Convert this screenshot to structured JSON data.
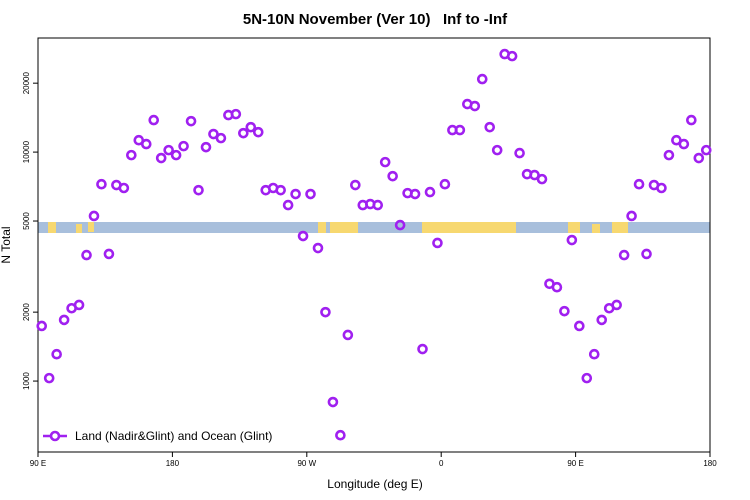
{
  "chart_data": {
    "type": "scatter",
    "title": "5N-10N November (Ver 10)   Inf to -Inf",
    "x_label": "Longitude (deg E)",
    "y_label": "N Total",
    "log_y": true,
    "xlim": [
      90,
      540
    ],
    "ylim": [
      490,
      31500
    ],
    "xticks": [
      {
        "value": 90,
        "label": "90 E"
      },
      {
        "value": 180,
        "label": "180"
      },
      {
        "value": 270,
        "label": "90 W"
      },
      {
        "value": 360,
        "label": "0"
      },
      {
        "value": 450,
        "label": "90 E"
      },
      {
        "value": 540,
        "label": "180"
      }
    ],
    "yticks": [
      1000,
      2000,
      5000,
      10000,
      20000
    ],
    "legend": "bottom-left",
    "x": [
      92.5,
      97.5,
      102.5,
      107.5,
      112.5,
      117.5,
      122.5,
      127.5,
      132.5,
      137.5,
      142.5,
      147.5,
      152.5,
      157.5,
      162.5,
      167.5,
      172.5,
      177.5,
      182.5,
      187.5,
      192.5,
      197.5,
      202.5,
      207.5,
      212.5,
      217.5,
      222.5,
      227.5,
      232.5,
      237.5,
      242.5,
      247.5,
      252.5,
      257.5,
      262.5,
      267.5,
      272.5,
      277.5,
      282.5,
      287.5,
      292.5,
      297.5,
      302.5,
      307.5,
      312.5,
      317.5,
      322.5,
      327.5,
      332.5,
      337.5,
      342.5,
      347.5,
      352.5,
      357.5,
      362.5,
      367.5,
      372.5,
      377.5,
      382.5,
      387.5,
      392.5,
      397.5,
      402.5,
      407.5,
      412.5,
      417.5,
      422.5,
      427.5,
      432.5,
      437.5,
      442.5,
      447.5,
      452.5,
      457.5,
      462.5,
      467.5,
      472.5,
      477.5,
      482.5,
      487.5,
      492.5,
      497.5,
      502.5,
      507.5,
      512.5,
      517.5,
      522.5,
      527.5,
      532.5,
      537.5
    ],
    "series": [
      {
        "name": "Land (Nadir&Glint) and Ocean (Glint)",
        "color": "#a020f0",
        "values": [
          1740,
          1030,
          1310,
          1850,
          2080,
          2150,
          3550,
          5260,
          7240,
          3590,
          7180,
          6970,
          9700,
          11270,
          10840,
          13800,
          9420,
          10200,
          9700,
          10620,
          13650,
          6820,
          10510,
          11990,
          11510,
          14510,
          14650,
          12100,
          12850,
          12220,
          6820,
          6970,
          6820,
          5870,
          6560,
          4300,
          6560,
          3810,
          2000,
          810,
          580,
          1590,
          7180,
          5870,
          5930,
          5870,
          9040,
          7850,
          4800,
          6620,
          6560,
          1380,
          6690,
          4010,
          7240,
          12480,
          12480,
          16210,
          15890,
          20840,
          12850,
          10200,
          26790,
          26250,
          9900,
          8010,
          7940,
          7620,
          2660,
          2570,
          2020,
          4130,
          1740,
          1030,
          1310,
          1850,
          2080,
          2150,
          3550,
          5260,
          7240,
          3590,
          7180,
          6970,
          9700,
          11270,
          10840,
          13800,
          9420,
          10200
        ]
      }
    ]
  }
}
